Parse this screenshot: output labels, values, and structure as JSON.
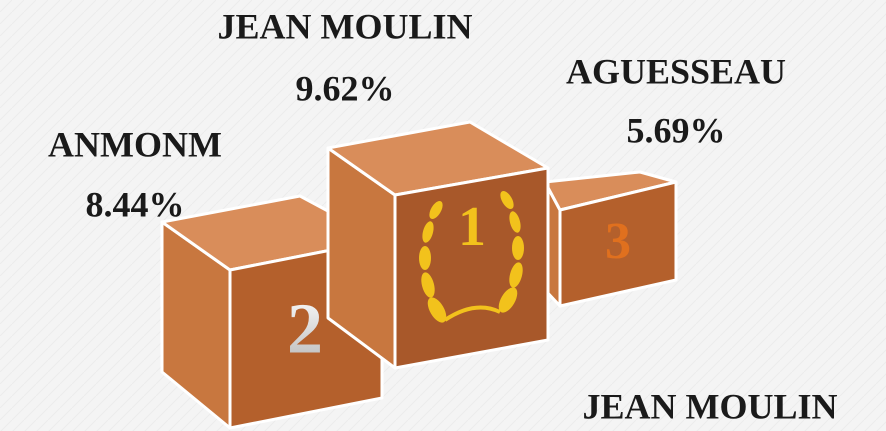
{
  "podium": [
    {
      "rank": "1",
      "name": "JEAN MOULIN",
      "value": "9.62%"
    },
    {
      "rank": "2",
      "name": "ANMONM",
      "value": "8.44%"
    },
    {
      "rank": "3",
      "name": "AGUESSEAU",
      "value": "5.69%"
    }
  ],
  "footer": "JEAN MOULIN"
}
